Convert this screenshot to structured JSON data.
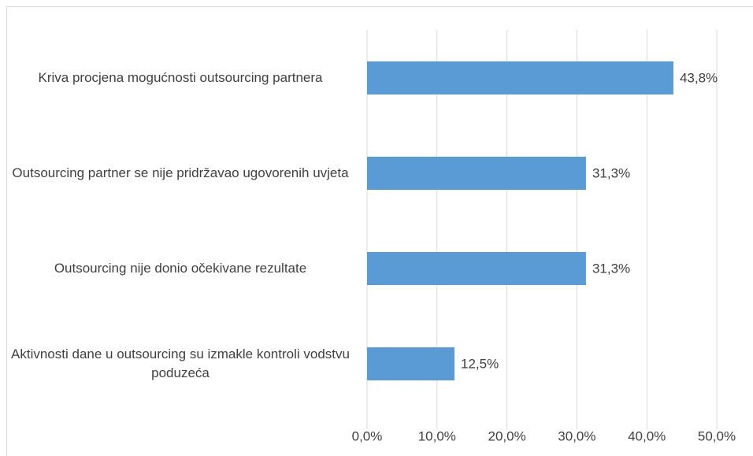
{
  "chart_data": {
    "type": "bar",
    "orientation": "horizontal",
    "categories": [
      "Kriva procjena mogućnosti outsourcing partnera",
      "Outsourcing partner se nije pridržavao ugovorenih uvjeta",
      "Outsourcing nije donio očekivane rezultate",
      "Aktivnosti dane u outsourcing su izmakle kontroli vodstvu poduzeća"
    ],
    "values": [
      43.8,
      31.3,
      31.3,
      12.5
    ],
    "value_labels": [
      "43,8%",
      "31,3%",
      "31,3%",
      "12,5%"
    ],
    "color": "#5b9bd5",
    "xlim": [
      0,
      50
    ],
    "xticks": [
      {
        "value": 0,
        "label": "0,0%"
      },
      {
        "value": 10,
        "label": "10,0%"
      },
      {
        "value": 20,
        "label": "20,0%"
      },
      {
        "value": 30,
        "label": "30,0%"
      },
      {
        "value": 40,
        "label": "40,0%"
      },
      {
        "value": 50,
        "label": "50,0%"
      }
    ],
    "grid": true
  }
}
